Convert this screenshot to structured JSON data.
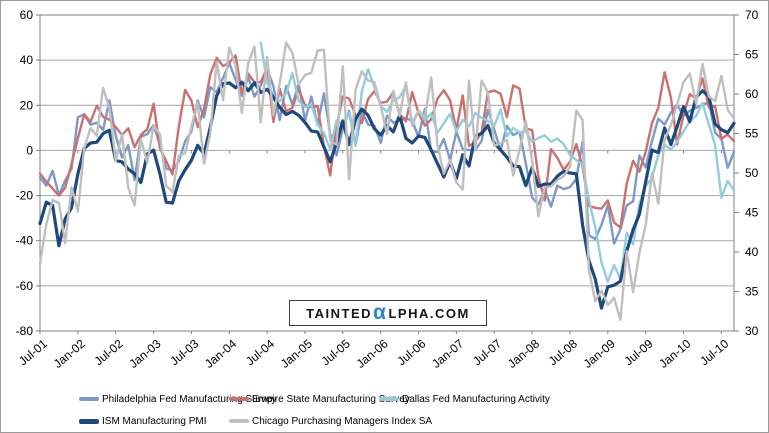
{
  "watermark": {
    "prefix": "TAINTED",
    "alpha": "α",
    "suffix": "LPHA.COM",
    "alpha_color": "#2b87c9"
  },
  "colors": {
    "gridline": "#a6a6a6",
    "plot_border": "#808080",
    "axis_text": "#000000",
    "frame_border": "#9a9a9a"
  },
  "chart_data": {
    "type": "line",
    "title": "",
    "xlabel": "",
    "ylabel": "",
    "grid": true,
    "legend_position": "bottom",
    "left_axis": {
      "min": -80,
      "max": 60,
      "step": 20
    },
    "right_axis": {
      "min": 30,
      "max": 70,
      "step": 5
    },
    "x_tick_every": 6,
    "x_tick_labels": [
      "Jul-01",
      "Jan-02",
      "Jul-02",
      "Jan-03",
      "Jul-03",
      "Jan-04",
      "Jul-04",
      "Jan-05",
      "Jul-05",
      "Jan-06",
      "Jul-06",
      "Jan-07",
      "Jul-07",
      "Jan-08",
      "Jul-08",
      "Jan-09",
      "Jul-09",
      "Jan-10",
      "Jul-10"
    ],
    "months": [
      "Jul-01",
      "Aug-01",
      "Sep-01",
      "Oct-01",
      "Nov-01",
      "Dec-01",
      "Jan-02",
      "Feb-02",
      "Mar-02",
      "Apr-02",
      "May-02",
      "Jun-02",
      "Jul-02",
      "Aug-02",
      "Sep-02",
      "Oct-02",
      "Nov-02",
      "Dec-02",
      "Jan-03",
      "Feb-03",
      "Mar-03",
      "Apr-03",
      "May-03",
      "Jun-03",
      "Jul-03",
      "Aug-03",
      "Sep-03",
      "Oct-03",
      "Nov-03",
      "Dec-03",
      "Jan-04",
      "Feb-04",
      "Mar-04",
      "Apr-04",
      "May-04",
      "Jun-04",
      "Jul-04",
      "Aug-04",
      "Sep-04",
      "Oct-04",
      "Nov-04",
      "Dec-04",
      "Jan-05",
      "Feb-05",
      "Mar-05",
      "Apr-05",
      "May-05",
      "Jun-05",
      "Jul-05",
      "Aug-05",
      "Sep-05",
      "Oct-05",
      "Nov-05",
      "Dec-05",
      "Jan-06",
      "Feb-06",
      "Mar-06",
      "Apr-06",
      "May-06",
      "Jun-06",
      "Jul-06",
      "Aug-06",
      "Sep-06",
      "Oct-06",
      "Nov-06",
      "Dec-06",
      "Jan-07",
      "Feb-07",
      "Mar-07",
      "Apr-07",
      "May-07",
      "Jun-07",
      "Jul-07",
      "Aug-07",
      "Sep-07",
      "Oct-07",
      "Nov-07",
      "Dec-07",
      "Jan-08",
      "Feb-08",
      "Mar-08",
      "Apr-08",
      "May-08",
      "Jun-08",
      "Jul-08",
      "Aug-08",
      "Sep-08",
      "Oct-08",
      "Nov-08",
      "Dec-08",
      "Jan-09",
      "Feb-09",
      "Mar-09",
      "Apr-09",
      "May-09",
      "Jun-09",
      "Jul-09",
      "Aug-09",
      "Sep-09",
      "Oct-09",
      "Nov-09",
      "Dec-09",
      "Jan-10",
      "Feb-10",
      "Mar-10",
      "Apr-10",
      "May-10",
      "Jun-10",
      "Jul-10",
      "Aug-10",
      "Sep-10"
    ],
    "series": [
      {
        "name": "Philadelphia Fed Manufacturing Survey",
        "axis": "left",
        "color": "#7c99c9",
        "line_width": 2.4,
        "values": [
          -12.0,
          -15.6,
          -9.0,
          -19.9,
          -13.3,
          -8.2,
          14.7,
          16.0,
          11.4,
          12.3,
          9.1,
          22.2,
          6.6,
          -3.1,
          2.3,
          -13.1,
          6.1,
          7.2,
          11.2,
          2.3,
          -8.0,
          -8.8,
          -4.8,
          4.0,
          8.3,
          22.1,
          14.6,
          28.0,
          25.9,
          32.1,
          38.8,
          31.4,
          24.2,
          32.5,
          23.8,
          28.9,
          36.1,
          28.5,
          13.4,
          28.5,
          20.3,
          29.6,
          13.2,
          23.9,
          11.4,
          25.3,
          7.3,
          -2.2,
          9.6,
          17.5,
          2.2,
          17.3,
          11.5,
          10.9,
          3.3,
          15.4,
          12.3,
          13.2,
          14.4,
          13.1,
          6.0,
          18.5,
          -0.4,
          -0.7,
          5.1,
          -4.3,
          8.3,
          0.6,
          0.2,
          0.2,
          4.2,
          18.0,
          9.2,
          0.0,
          10.9,
          6.8,
          8.2,
          -5.7,
          -20.9,
          -24.0,
          -17.4,
          -24.9,
          -15.6,
          -17.1,
          -16.3,
          -12.7,
          3.8,
          -37.5,
          -39.3,
          -32.9,
          -24.3,
          -41.3,
          -35.0,
          -24.4,
          -22.6,
          -2.2,
          -7.5,
          4.2,
          14.1,
          11.5,
          16.7,
          20.4,
          15.2,
          17.6,
          18.9,
          20.2,
          21.4,
          8.0,
          5.1,
          -7.7,
          -0.7
        ]
      },
      {
        "name": "Empire State Manufacturing Survey",
        "axis": "left",
        "color": "#c9716f",
        "line_width": 2.4,
        "values": [
          -10.2,
          -13.8,
          -16.9,
          -20.0,
          -16.5,
          -6.1,
          5.4,
          16.0,
          12.6,
          19.8,
          14.9,
          13.6,
          10.4,
          6.9,
          9.8,
          1.4,
          6.9,
          9.4,
          20.7,
          1.1,
          -4.8,
          -10.6,
          10.6,
          26.8,
          22.1,
          10.3,
          18.4,
          33.7,
          41.0,
          37.4,
          38.9,
          42.1,
          25.3,
          34.0,
          30.2,
          30.3,
          36.5,
          12.6,
          27.3,
          17.4,
          18.9,
          27.1,
          20.1,
          19.2,
          19.6,
          2.0,
          -11.1,
          10.5,
          23.9,
          23.0,
          15.6,
          12.1,
          22.8,
          26.3,
          21.1,
          21.6,
          25.8,
          16.2,
          12.9,
          25.8,
          16.6,
          11.0,
          13.8,
          22.9,
          26.7,
          22.2,
          9.1,
          24.4,
          1.9,
          3.8,
          8.0,
          25.8,
          26.5,
          25.1,
          14.7,
          28.8,
          27.4,
          9.8,
          9.0,
          -11.7,
          -22.2,
          0.6,
          -3.2,
          -8.7,
          -4.9,
          2.8,
          -7.4,
          -24.6,
          -25.4,
          -25.8,
          -22.2,
          -31.9,
          -34.2,
          -14.7,
          -4.6,
          -9.4,
          -0.6,
          12.1,
          18.9,
          34.6,
          23.5,
          2.6,
          15.9,
          24.9,
          22.9,
          31.9,
          19.1,
          19.6,
          5.1,
          7.1,
          4.1
        ]
      },
      {
        "name": "Dallas Fed Manufacturing Activity",
        "axis": "left",
        "color": "#92cddc",
        "line_width": 2.4,
        "values": [
          null,
          null,
          null,
          null,
          null,
          null,
          null,
          null,
          null,
          null,
          null,
          null,
          null,
          null,
          null,
          null,
          null,
          null,
          null,
          null,
          null,
          null,
          null,
          null,
          null,
          null,
          null,
          null,
          null,
          null,
          null,
          null,
          null,
          null,
          null,
          47.8,
          30.0,
          24.3,
          21.8,
          25.4,
          34.3,
          22.0,
          19.2,
          20.2,
          11.6,
          7.7,
          0.5,
          13.2,
          11.7,
          16.7,
          2.4,
          26.0,
          36.0,
          28.0,
          19.7,
          17.1,
          22.2,
          23.5,
          28.5,
          12.1,
          17.7,
          13.2,
          16.5,
          7.9,
          12.0,
          16.3,
          8.4,
          13.6,
          10.7,
          16.5,
          14.5,
          13.1,
          10.9,
          18.2,
          6.2,
          10.0,
          7.9,
          8.6,
          3.9,
          5.5,
          6.7,
          3.9,
          5.2,
          2.8,
          -2.0,
          -4.3,
          -6.1,
          -21.9,
          -33.9,
          -49.7,
          -58.1,
          -50.7,
          -57.0,
          -36.5,
          -41.6,
          -23.5,
          -15.7,
          -12.2,
          -2.0,
          2.5,
          0.3,
          3.8,
          8.4,
          13.1,
          15.2,
          21.1,
          11.5,
          2.6,
          -21.0,
          -13.5,
          -17.7
        ]
      },
      {
        "name": "ISM Manufacturing PMI",
        "axis": "right",
        "color": "#1f497d",
        "line_width": 3.2,
        "values": [
          43.6,
          46.3,
          45.9,
          40.8,
          44.2,
          45.6,
          49.9,
          53.1,
          53.8,
          53.9,
          55.0,
          55.4,
          51.6,
          51.4,
          50.5,
          49.9,
          48.8,
          52.4,
          52.9,
          49.9,
          46.3,
          46.2,
          49.0,
          50.4,
          51.6,
          53.5,
          52.4,
          55.8,
          59.8,
          61.3,
          61.4,
          60.8,
          61.5,
          60.4,
          61.4,
          60.2,
          60.6,
          59.6,
          58.3,
          57.4,
          57.8,
          57.3,
          56.4,
          55.3,
          55.2,
          53.3,
          51.4,
          53.8,
          56.6,
          53.6,
          56.8,
          58.1,
          57.3,
          55.6,
          54.8,
          56.0,
          55.2,
          57.3,
          54.4,
          53.8,
          54.7,
          54.5,
          52.9,
          51.2,
          49.5,
          51.4,
          49.3,
          52.3,
          50.9,
          54.7,
          55.0,
          56.0,
          53.8,
          52.9,
          52.0,
          50.9,
          50.8,
          48.4,
          50.7,
          48.3,
          48.6,
          48.6,
          49.6,
          50.2,
          50.0,
          49.9,
          43.4,
          38.9,
          36.6,
          32.9,
          35.6,
          35.8,
          36.3,
          40.1,
          42.8,
          44.8,
          48.9,
          52.9,
          52.6,
          55.7,
          53.6,
          55.9,
          58.4,
          56.5,
          59.6,
          60.4,
          59.7,
          56.2,
          55.5,
          55.1,
          56.3
        ]
      },
      {
        "name": "Chicago Purchasing Managers Index SA",
        "axis": "right",
        "color": "#bfbfbf",
        "line_width": 2.4,
        "values": [
          38.5,
          43.5,
          46.6,
          46.2,
          41.1,
          48.2,
          45.1,
          53.1,
          55.7,
          54.7,
          60.8,
          58.2,
          51.5,
          54.9,
          48.1,
          45.9,
          54.3,
          51.3,
          56.0,
          54.9,
          48.4,
          47.6,
          52.2,
          52.5,
          55.9,
          58.9,
          51.2,
          55.0,
          64.1,
          59.2,
          65.9,
          63.6,
          57.6,
          63.9,
          66.0,
          56.4,
          64.7,
          57.3,
          61.3,
          66.5,
          65.2,
          61.2,
          62.4,
          62.7,
          65.5,
          65.6,
          54.1,
          53.6,
          63.5,
          49.2,
          60.5,
          62.9,
          61.7,
          61.5,
          58.5,
          54.9,
          60.4,
          57.2,
          61.5,
          56.0,
          57.9,
          57.1,
          62.1,
          53.5,
          49.9,
          51.6,
          48.8,
          47.9,
          61.7,
          52.9,
          61.7,
          60.2,
          53.4,
          53.8,
          54.2,
          49.7,
          52.9,
          56.6,
          51.5,
          44.5,
          48.2,
          48.3,
          49.1,
          49.6,
          50.8,
          57.9,
          56.7,
          37.8,
          33.8,
          35.1,
          33.3,
          34.2,
          31.4,
          40.1,
          34.9,
          39.9,
          43.4,
          50.0,
          46.1,
          54.2,
          56.1,
          58.7,
          61.5,
          62.6,
          58.8,
          63.8,
          59.7,
          59.1,
          62.3,
          58.0,
          56.9
        ]
      }
    ]
  }
}
